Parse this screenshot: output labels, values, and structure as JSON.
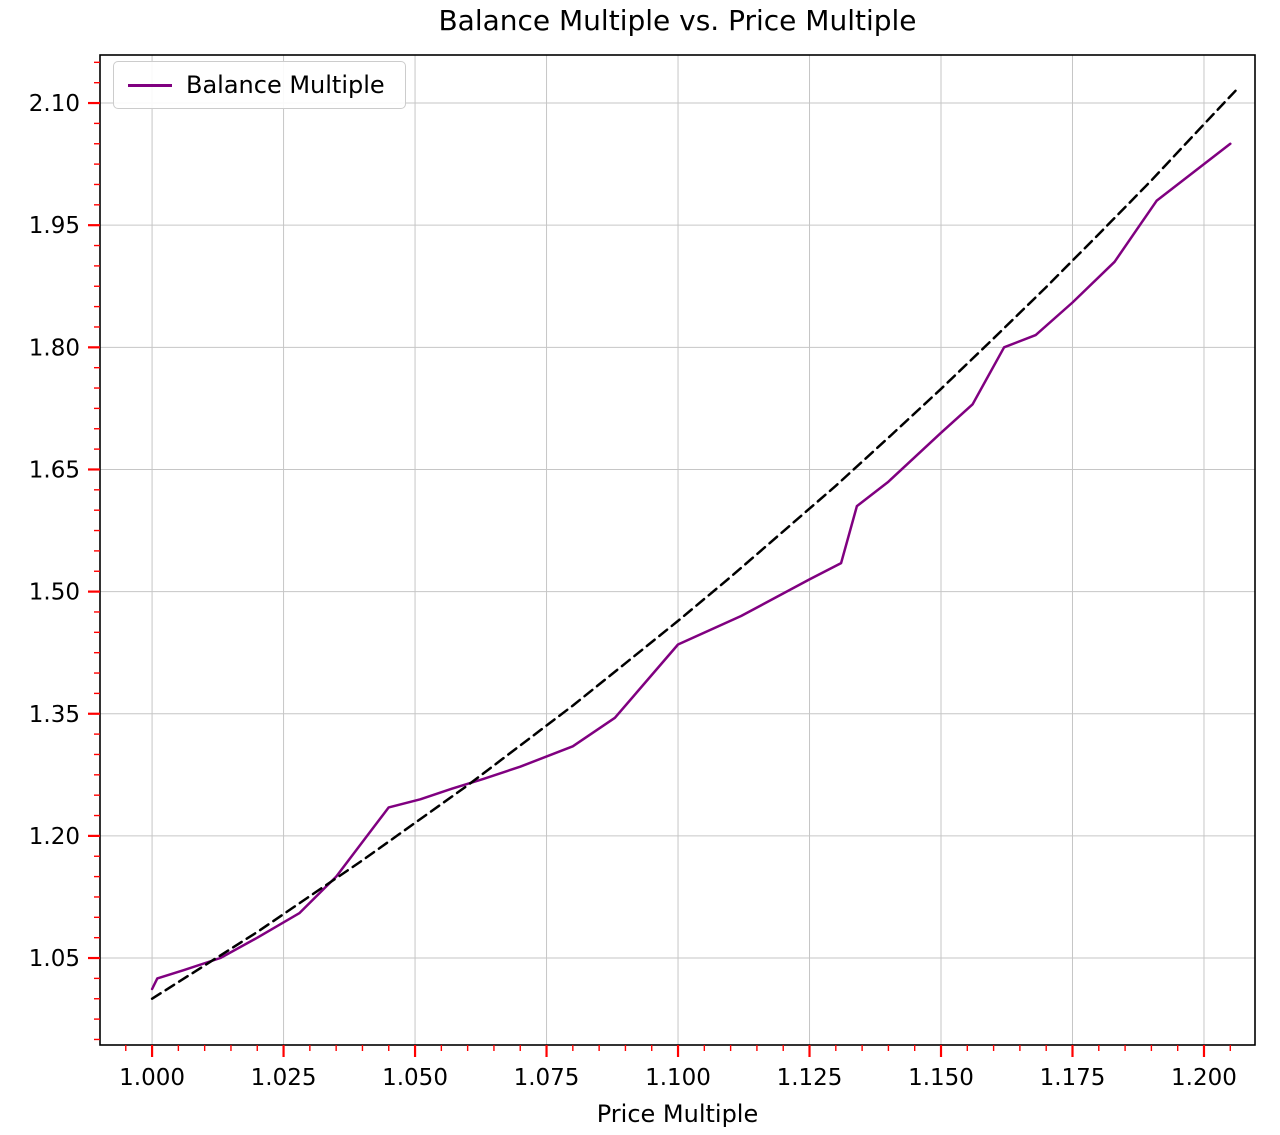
{
  "title": "Balance Multiple vs. Price Multiple",
  "xlabel": "Price Multiple",
  "legend": {
    "label": "Balance Multiple"
  },
  "colors": {
    "line": "#800080",
    "reference": "#000000",
    "tick": "#ff0000",
    "grid": "#c6c6c6",
    "spine": "#000000",
    "text": "#000000"
  },
  "chart_data": {
    "type": "line",
    "title": "Balance Multiple vs. Price Multiple",
    "xlabel": "Price Multiple",
    "ylabel": "",
    "xlim": [
      0.9901,
      1.2097
    ],
    "ylim": [
      0.9432,
      2.159
    ],
    "xticks": [
      1.0,
      1.025,
      1.05,
      1.075,
      1.1,
      1.125,
      1.15,
      1.175,
      1.2
    ],
    "yticks": [
      1.05,
      1.2,
      1.35,
      1.5,
      1.65,
      1.8,
      1.95,
      2.1
    ],
    "x_minor_step": 0.005,
    "y_minor_step": 0.025,
    "grid": "major",
    "legend_position": "upper left",
    "series": [
      {
        "name": "Balance Multiple",
        "color": "#800080",
        "style": "solid",
        "x": [
          1.0,
          1.001,
          1.006,
          1.013,
          1.02,
          1.028,
          1.035,
          1.045,
          1.051,
          1.057,
          1.063,
          1.07,
          1.08,
          1.088,
          1.1,
          1.112,
          1.125,
          1.131,
          1.134,
          1.14,
          1.15,
          1.156,
          1.162,
          1.168,
          1.175,
          1.183,
          1.191,
          1.205
        ],
        "y": [
          1.012,
          1.025,
          1.035,
          1.05,
          1.075,
          1.105,
          1.15,
          1.235,
          1.245,
          1.258,
          1.27,
          1.285,
          1.31,
          1.345,
          1.435,
          1.47,
          1.515,
          1.535,
          1.605,
          1.635,
          1.695,
          1.73,
          1.8,
          1.815,
          1.855,
          1.905,
          1.98,
          2.05
        ]
      },
      {
        "name": "reference",
        "color": "#000000",
        "style": "dashed",
        "x": [
          1.0,
          1.01,
          1.02,
          1.03,
          1.04,
          1.05,
          1.06,
          1.07,
          1.08,
          1.09,
          1.1,
          1.11,
          1.12,
          1.13,
          1.14,
          1.15,
          1.16,
          1.17,
          1.18,
          1.19,
          1.2,
          1.206
        ],
        "y": [
          1.0,
          1.041,
          1.082,
          1.126,
          1.17,
          1.216,
          1.262,
          1.311,
          1.36,
          1.412,
          1.464,
          1.518,
          1.574,
          1.63,
          1.689,
          1.749,
          1.811,
          1.874,
          1.939,
          2.005,
          2.074,
          2.115
        ]
      }
    ]
  }
}
